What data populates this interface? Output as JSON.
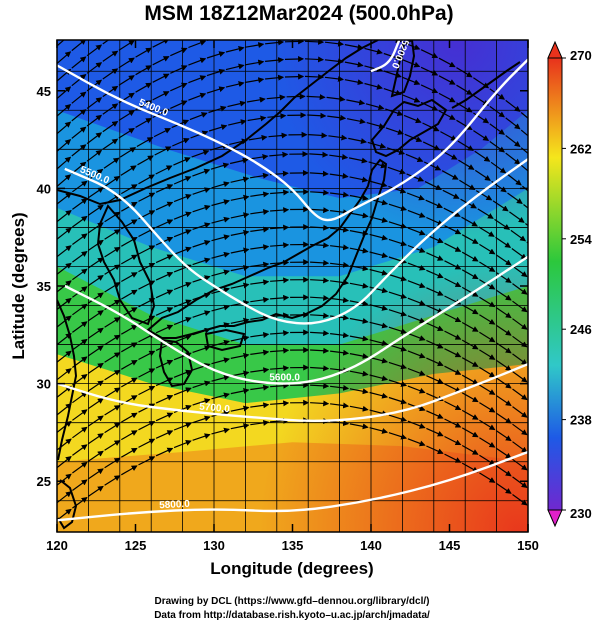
{
  "title": "MSM 18Z12Mar2024 (500.0hPa)",
  "x_axis": {
    "label": "Longitude (degrees)",
    "ticks": [
      "120",
      "125",
      "130",
      "135",
      "140",
      "145",
      "150"
    ]
  },
  "y_axis": {
    "label": "Latitude  (degrees)",
    "ticks": [
      "25",
      "30",
      "35",
      "40",
      "45"
    ]
  },
  "colorbar": {
    "ticks": [
      "270",
      "262",
      "254",
      "246",
      "238",
      "230"
    ],
    "min": 230,
    "max": 270
  },
  "credits": [
    "Drawing by DCL (https://www.gfd–dennou.org/library/dcl/)",
    "Data from http://database.rish.kyoto–u.ac.jp/arch/jmadata/"
  ],
  "contour_labels": [
    "5200.0",
    "5400.0",
    "5500.0",
    "5600.0",
    "5700.0",
    "5800.0"
  ],
  "colors": {
    "warm": "#e8321c",
    "yellow": "#f5e61c",
    "green": "#2cc83c",
    "cyan": "#30c8c8",
    "blue": "#1e5ae6",
    "purple": "#7028d0"
  },
  "chart_data": {
    "type": "heatmap",
    "title": "MSM 18Z12Mar2024 (500.0hPa)",
    "xlabel": "Longitude (degrees)",
    "ylabel": "Latitude  (degrees)",
    "xlim": [
      120,
      150
    ],
    "ylim": [
      22.4,
      47.6
    ],
    "colorbar_range": [
      230,
      270
    ],
    "contours": [
      {
        "label": "5200.0",
        "points": [
          [
            141.8,
            47.6
          ],
          [
            141.2,
            46.4
          ],
          [
            140.0,
            46.0
          ]
        ]
      },
      {
        "label": "5400.0",
        "points": [
          [
            120.0,
            46.3
          ],
          [
            124.0,
            44.5
          ],
          [
            128.0,
            43.2
          ],
          [
            130.5,
            42.3
          ],
          [
            133.0,
            41.2
          ],
          [
            135.0,
            40.0
          ],
          [
            136.5,
            38.5
          ],
          [
            137.5,
            38.3
          ],
          [
            139.0,
            39.0
          ],
          [
            142.0,
            40.2
          ],
          [
            145.0,
            42.0
          ],
          [
            148.0,
            45.0
          ],
          [
            150.0,
            46.6
          ]
        ]
      },
      {
        "label": "5500.0",
        "points": [
          [
            120.5,
            41.0
          ],
          [
            124.0,
            39.8
          ],
          [
            127.0,
            37.0
          ],
          [
            128.5,
            35.8
          ],
          [
            130.0,
            35.0
          ],
          [
            132.0,
            34.0
          ],
          [
            134.0,
            33.2
          ],
          [
            136.5,
            33.0
          ],
          [
            139.0,
            33.8
          ],
          [
            141.0,
            35.5
          ],
          [
            143.5,
            37.5
          ],
          [
            146.5,
            39.5
          ],
          [
            150.0,
            41.5
          ]
        ]
      },
      {
        "label": "5600.0",
        "points": [
          [
            120.5,
            35.0
          ],
          [
            124.0,
            33.6
          ],
          [
            127.0,
            32.0
          ],
          [
            130.0,
            30.6
          ],
          [
            133.0,
            30.0
          ],
          [
            136.0,
            30.0
          ],
          [
            139.0,
            30.8
          ],
          [
            142.0,
            32.4
          ],
          [
            146.0,
            34.4
          ],
          [
            150.0,
            36.5
          ]
        ]
      },
      {
        "label": "5700.0",
        "points": [
          [
            120.0,
            30.0
          ],
          [
            124.0,
            29.0
          ],
          [
            128.0,
            28.6
          ],
          [
            132.0,
            28.3
          ],
          [
            137.0,
            28.0
          ],
          [
            142.0,
            28.5
          ],
          [
            146.0,
            29.7
          ],
          [
            150.0,
            31.0
          ]
        ]
      },
      {
        "label": "5800.0",
        "points": [
          [
            120.0,
            23.0
          ],
          [
            125.0,
            23.4
          ],
          [
            130.0,
            23.6
          ],
          [
            135.0,
            23.4
          ],
          [
            140.0,
            24.0
          ],
          [
            145.0,
            25.0
          ],
          [
            150.0,
            26.5
          ]
        ]
      }
    ]
  }
}
